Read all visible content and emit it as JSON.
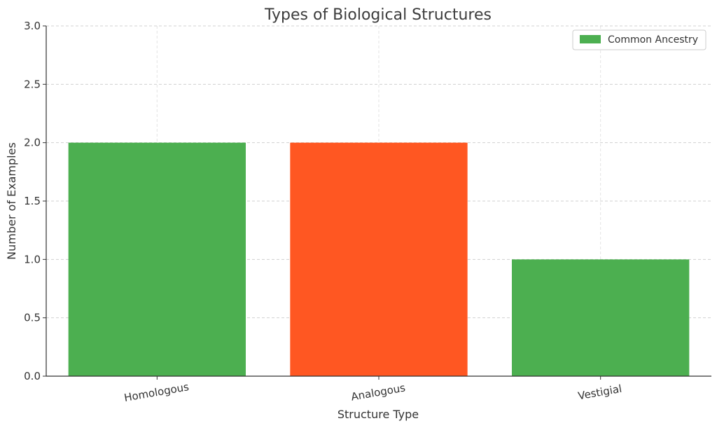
{
  "chart_data": {
    "type": "bar",
    "title": "Types of Biological Structures",
    "xlabel": "Structure Type",
    "ylabel": "Number of Examples",
    "categories": [
      "Homologous",
      "Analogous",
      "Vestigial"
    ],
    "values": [
      2,
      2,
      1
    ],
    "bar_colors": [
      "#4caf50",
      "#ff5722",
      "#4caf50"
    ],
    "ylim": [
      0,
      3
    ],
    "yticks": [
      "0.0",
      "0.5",
      "1.0",
      "1.5",
      "2.0",
      "2.5",
      "3.0"
    ],
    "ytick_values": [
      0,
      0.5,
      1,
      1.5,
      2,
      2.5,
      3
    ],
    "grid": true,
    "legend": {
      "position": "top-right",
      "entries": [
        {
          "label": "Common Ancestry",
          "color": "#4caf50"
        }
      ]
    }
  }
}
